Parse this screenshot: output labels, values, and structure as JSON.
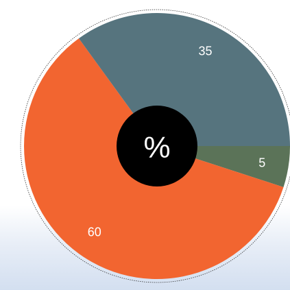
{
  "chart_data": {
    "type": "pie",
    "donut_center_label": "%",
    "slices": [
      {
        "label": "5",
        "value": 5,
        "color": "#5b7358"
      },
      {
        "label": "60",
        "value": 60,
        "color": "#f26530"
      },
      {
        "label": "35",
        "value": 35,
        "color": "#56747e"
      }
    ],
    "start_angle_deg": 0,
    "direction": "clockwise",
    "legend": "none"
  }
}
